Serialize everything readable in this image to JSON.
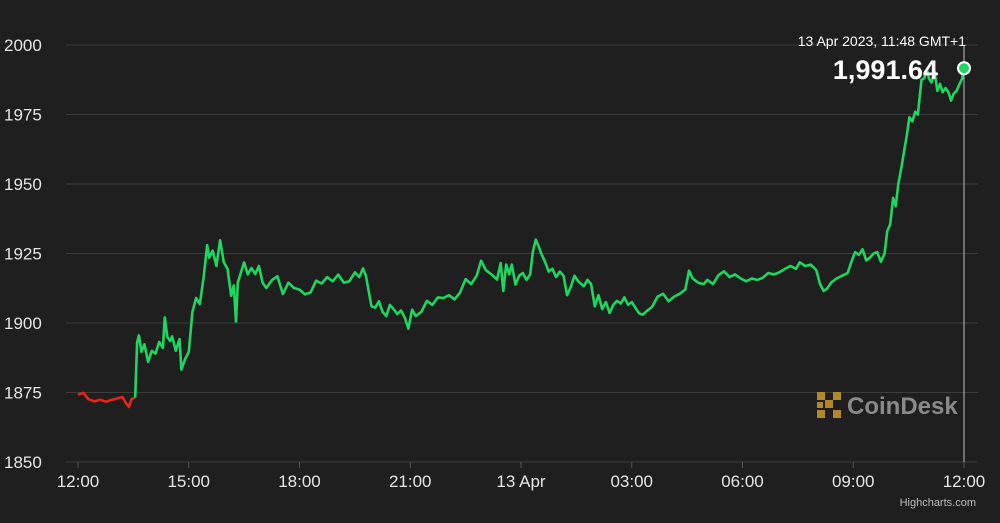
{
  "chart_data": {
    "type": "line",
    "y_ticks": [
      "2000",
      "1975",
      "1950",
      "1925",
      "1900",
      "1875",
      "1850"
    ],
    "ylim": [
      1850,
      2000
    ],
    "x_ticks": [
      "12:00",
      "15:00",
      "18:00",
      "21:00",
      "13 Apr",
      "03:00",
      "06:00",
      "09:00",
      "12:00"
    ],
    "x_tick_hours": [
      0,
      3,
      6,
      9,
      12,
      15,
      18,
      21,
      24
    ],
    "xlim_hours": [
      0,
      24
    ],
    "grid": "horizontal",
    "series": [
      {
        "color_up": "#1ed760",
        "color_down": "#e8231c",
        "down_until_hour": 1.55,
        "points": [
          [
            0.0,
            1874.2
          ],
          [
            0.15,
            1874.9
          ],
          [
            0.28,
            1872.6
          ],
          [
            0.45,
            1871.8
          ],
          [
            0.6,
            1872.4
          ],
          [
            0.75,
            1871.7
          ],
          [
            0.9,
            1872.3
          ],
          [
            1.05,
            1872.8
          ],
          [
            1.2,
            1873.4
          ],
          [
            1.3,
            1871.2
          ],
          [
            1.38,
            1869.8
          ],
          [
            1.45,
            1872.6
          ],
          [
            1.55,
            1873.2
          ],
          [
            1.6,
            1893.0
          ],
          [
            1.65,
            1895.5
          ],
          [
            1.72,
            1889.6
          ],
          [
            1.8,
            1892.3
          ],
          [
            1.9,
            1886.0
          ],
          [
            2.0,
            1890.0
          ],
          [
            2.1,
            1889.0
          ],
          [
            2.2,
            1893.2
          ],
          [
            2.3,
            1891.0
          ],
          [
            2.35,
            1902.0
          ],
          [
            2.42,
            1895.0
          ],
          [
            2.5,
            1893.5
          ],
          [
            2.55,
            1895.2
          ],
          [
            2.65,
            1890.0
          ],
          [
            2.75,
            1894.2
          ],
          [
            2.8,
            1883.2
          ],
          [
            2.9,
            1887.0
          ],
          [
            3.0,
            1889.6
          ],
          [
            3.1,
            1904.0
          ],
          [
            3.2,
            1909.0
          ],
          [
            3.3,
            1906.8
          ],
          [
            3.4,
            1916.0
          ],
          [
            3.5,
            1928.0
          ],
          [
            3.55,
            1923.5
          ],
          [
            3.65,
            1926.0
          ],
          [
            3.75,
            1920.5
          ],
          [
            3.85,
            1929.8
          ],
          [
            3.95,
            1921.8
          ],
          [
            4.05,
            1919.5
          ],
          [
            4.15,
            1909.8
          ],
          [
            4.22,
            1913.5
          ],
          [
            4.28,
            1900.5
          ],
          [
            4.33,
            1914.5
          ],
          [
            4.42,
            1918.5
          ],
          [
            4.5,
            1921.8
          ],
          [
            4.6,
            1917.5
          ],
          [
            4.7,
            1919.8
          ],
          [
            4.8,
            1917.6
          ],
          [
            4.9,
            1920.5
          ],
          [
            5.0,
            1914.5
          ],
          [
            5.1,
            1912.6
          ],
          [
            5.25,
            1915.4
          ],
          [
            5.4,
            1916.8
          ],
          [
            5.55,
            1910.4
          ],
          [
            5.7,
            1914.5
          ],
          [
            5.85,
            1912.6
          ],
          [
            6.0,
            1912.0
          ],
          [
            6.15,
            1910.3
          ],
          [
            6.3,
            1911.0
          ],
          [
            6.45,
            1915.2
          ],
          [
            6.6,
            1914.2
          ],
          [
            6.75,
            1916.5
          ],
          [
            6.9,
            1915.0
          ],
          [
            7.05,
            1917.4
          ],
          [
            7.2,
            1914.5
          ],
          [
            7.35,
            1915.0
          ],
          [
            7.5,
            1918.2
          ],
          [
            7.62,
            1916.5
          ],
          [
            7.72,
            1919.6
          ],
          [
            7.8,
            1917.0
          ],
          [
            7.88,
            1911.0
          ],
          [
            7.95,
            1906.0
          ],
          [
            8.05,
            1905.5
          ],
          [
            8.15,
            1907.8
          ],
          [
            8.25,
            1904.0
          ],
          [
            8.35,
            1902.5
          ],
          [
            8.45,
            1906.5
          ],
          [
            8.55,
            1905.0
          ],
          [
            8.65,
            1903.2
          ],
          [
            8.75,
            1904.5
          ],
          [
            8.85,
            1902.0
          ],
          [
            8.95,
            1898.0
          ],
          [
            9.05,
            1904.8
          ],
          [
            9.15,
            1902.5
          ],
          [
            9.3,
            1904.0
          ],
          [
            9.45,
            1908.0
          ],
          [
            9.6,
            1906.5
          ],
          [
            9.75,
            1909.2
          ],
          [
            9.9,
            1909.0
          ],
          [
            10.05,
            1910.0
          ],
          [
            10.2,
            1908.5
          ],
          [
            10.35,
            1911.0
          ],
          [
            10.5,
            1915.8
          ],
          [
            10.65,
            1914.0
          ],
          [
            10.8,
            1917.0
          ],
          [
            10.92,
            1922.4
          ],
          [
            11.05,
            1919.0
          ],
          [
            11.2,
            1917.5
          ],
          [
            11.35,
            1915.6
          ],
          [
            11.45,
            1921.5
          ],
          [
            11.52,
            1911.5
          ],
          [
            11.6,
            1921.0
          ],
          [
            11.68,
            1917.5
          ],
          [
            11.75,
            1921.0
          ],
          [
            11.85,
            1913.8
          ],
          [
            11.95,
            1917.0
          ],
          [
            12.05,
            1918.0
          ],
          [
            12.15,
            1915.5
          ],
          [
            12.25,
            1917.5
          ],
          [
            12.32,
            1925.5
          ],
          [
            12.4,
            1930.0
          ],
          [
            12.48,
            1927.5
          ],
          [
            12.55,
            1925.0
          ],
          [
            12.65,
            1922.0
          ],
          [
            12.75,
            1918.5
          ],
          [
            12.85,
            1919.5
          ],
          [
            12.95,
            1916.5
          ],
          [
            13.05,
            1918.5
          ],
          [
            13.15,
            1917.0
          ],
          [
            13.25,
            1910.0
          ],
          [
            13.35,
            1913.0
          ],
          [
            13.45,
            1917.0
          ],
          [
            13.55,
            1915.0
          ],
          [
            13.7,
            1913.2
          ],
          [
            13.8,
            1915.5
          ],
          [
            13.9,
            1914.0
          ],
          [
            14.0,
            1906.0
          ],
          [
            14.1,
            1910.0
          ],
          [
            14.2,
            1905.0
          ],
          [
            14.3,
            1907.5
          ],
          [
            14.4,
            1903.6
          ],
          [
            14.5,
            1906.5
          ],
          [
            14.6,
            1908.0
          ],
          [
            14.7,
            1907.0
          ],
          [
            14.8,
            1909.2
          ],
          [
            14.9,
            1906.5
          ],
          [
            15.0,
            1907.5
          ],
          [
            15.1,
            1905.5
          ],
          [
            15.2,
            1903.5
          ],
          [
            15.3,
            1903.0
          ],
          [
            15.4,
            1904.2
          ],
          [
            15.55,
            1905.8
          ],
          [
            15.7,
            1909.5
          ],
          [
            15.85,
            1910.5
          ],
          [
            16.0,
            1907.8
          ],
          [
            16.15,
            1909.5
          ],
          [
            16.3,
            1910.5
          ],
          [
            16.45,
            1912.0
          ],
          [
            16.55,
            1918.8
          ],
          [
            16.65,
            1916.0
          ],
          [
            16.8,
            1914.5
          ],
          [
            16.95,
            1914.0
          ],
          [
            17.05,
            1915.5
          ],
          [
            17.2,
            1914.0
          ],
          [
            17.35,
            1917.2
          ],
          [
            17.5,
            1918.6
          ],
          [
            17.65,
            1916.5
          ],
          [
            17.8,
            1917.5
          ],
          [
            17.95,
            1916.0
          ],
          [
            18.1,
            1915.0
          ],
          [
            18.25,
            1916.0
          ],
          [
            18.4,
            1915.5
          ],
          [
            18.55,
            1916.3
          ],
          [
            18.7,
            1918.0
          ],
          [
            18.85,
            1917.5
          ],
          [
            19.0,
            1918.2
          ],
          [
            19.15,
            1919.5
          ],
          [
            19.3,
            1920.5
          ],
          [
            19.45,
            1919.5
          ],
          [
            19.55,
            1921.8
          ],
          [
            19.7,
            1920.5
          ],
          [
            19.85,
            1921.0
          ],
          [
            20.0,
            1919.0
          ],
          [
            20.1,
            1914.0
          ],
          [
            20.2,
            1911.5
          ],
          [
            20.3,
            1912.5
          ],
          [
            20.4,
            1914.5
          ],
          [
            20.55,
            1916.0
          ],
          [
            20.7,
            1917.0
          ],
          [
            20.85,
            1918.0
          ],
          [
            20.95,
            1922.0
          ],
          [
            21.05,
            1925.5
          ],
          [
            21.15,
            1924.5
          ],
          [
            21.25,
            1926.5
          ],
          [
            21.35,
            1922.5
          ],
          [
            21.45,
            1923.5
          ],
          [
            21.55,
            1925.0
          ],
          [
            21.65,
            1925.5
          ],
          [
            21.75,
            1922.0
          ],
          [
            21.85,
            1925.0
          ],
          [
            21.92,
            1933.0
          ],
          [
            22.0,
            1935.5
          ],
          [
            22.08,
            1945.0
          ],
          [
            22.15,
            1942.0
          ],
          [
            22.22,
            1950.0
          ],
          [
            22.3,
            1955.5
          ],
          [
            22.38,
            1962.0
          ],
          [
            22.45,
            1967.5
          ],
          [
            22.52,
            1974.0
          ],
          [
            22.6,
            1972.5
          ],
          [
            22.68,
            1976.0
          ],
          [
            22.75,
            1975.0
          ],
          [
            22.8,
            1981.5
          ],
          [
            22.85,
            1987.5
          ],
          [
            22.92,
            1988.0
          ],
          [
            23.0,
            1991.0
          ],
          [
            23.05,
            1988.0
          ],
          [
            23.12,
            1986.5
          ],
          [
            23.2,
            1990.5
          ],
          [
            23.28,
            1983.5
          ],
          [
            23.35,
            1986.0
          ],
          [
            23.42,
            1983.0
          ],
          [
            23.5,
            1984.5
          ],
          [
            23.58,
            1983.0
          ],
          [
            23.65,
            1980.0
          ],
          [
            23.72,
            1982.5
          ],
          [
            23.8,
            1983.5
          ],
          [
            23.88,
            1986.0
          ],
          [
            23.95,
            1988.0
          ],
          [
            24.0,
            1991.64
          ]
        ]
      }
    ],
    "hover": {
      "date": "13 Apr 2023, 11:48 GMT+1",
      "value": "1,991.64",
      "hour": 24.0
    }
  },
  "watermark": "CoinDesk",
  "credits": "Highcharts.com",
  "colors": {
    "background": "#1f1f1f",
    "up": "#1ed760",
    "down": "#e8231c",
    "grid": "#3d3d3d",
    "text": "#e6e6e6"
  }
}
